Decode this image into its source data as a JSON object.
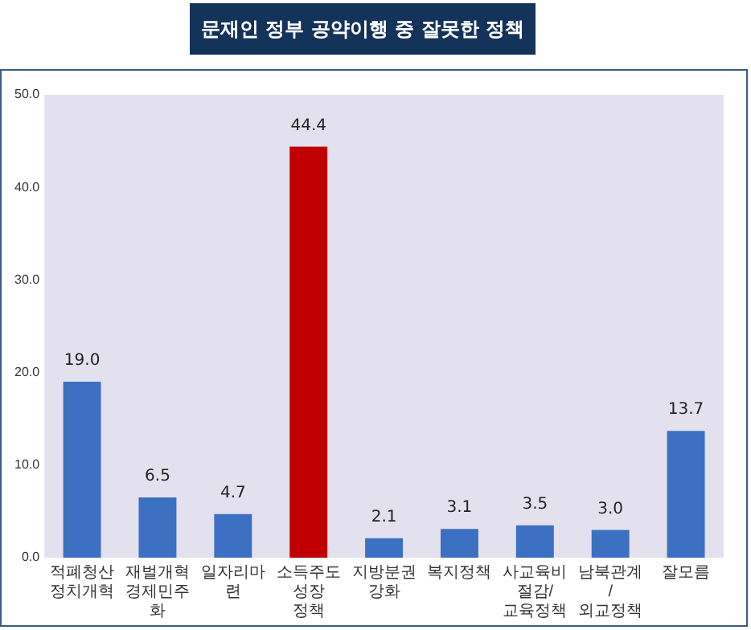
{
  "chart_data": {
    "type": "bar",
    "title": "문재인 정부 공약이행 중 잘못한 정책",
    "categories": [
      "적폐청산 정치개혁",
      "재벌개혁 경제민주화",
      "일자리마련",
      "소득주도성장 정책",
      "지방분권 강화",
      "복지정책",
      "사교육비절감/교육정책",
      "남북관계/외교정책",
      "잘모름"
    ],
    "values": [
      19.0,
      6.5,
      4.7,
      44.4,
      2.1,
      3.1,
      3.5,
      3.0,
      13.7
    ],
    "colors": [
      "#3b70c2",
      "#3b70c2",
      "#3b70c2",
      "#c00000",
      "#3b70c2",
      "#3b70c2",
      "#3b70c2",
      "#3b70c2",
      "#3b70c2"
    ],
    "ylim": [
      0,
      50
    ],
    "yticks": [
      {
        "value": 0,
        "label": "0.0"
      },
      {
        "value": 10,
        "label": "10.0"
      },
      {
        "value": 20,
        "label": "20.0"
      },
      {
        "value": 30,
        "label": "30.0"
      },
      {
        "value": 40,
        "label": "40.0"
      },
      {
        "value": 50,
        "label": "50.0"
      }
    ],
    "value_labels": [
      "19.0",
      "6.5",
      "4.7",
      "44.4",
      "2.1",
      "3.1",
      "3.5",
      "3.0",
      "13.7"
    ],
    "grid": false,
    "legend": false
  }
}
